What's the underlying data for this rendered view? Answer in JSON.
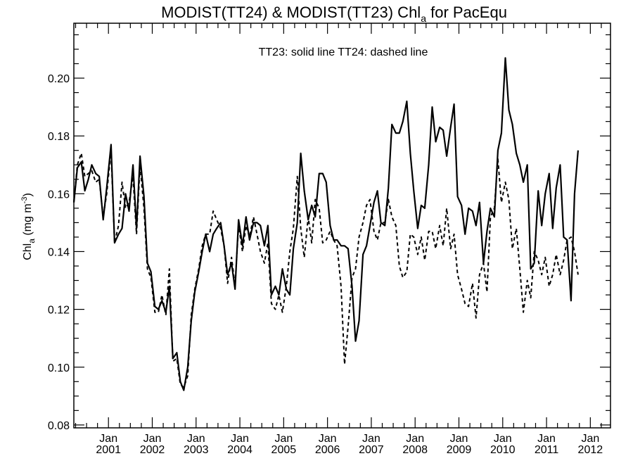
{
  "chart_data": {
    "type": "line",
    "title_parts": [
      "MODIST(TT24) & MODIST(TT23)  Chl",
      "a",
      " for PacEqu"
    ],
    "ylabel_parts": [
      "Chl",
      "a",
      " (mg m",
      "-3",
      ")"
    ],
    "annotation": "TT23: solid line   TT24: dashed line",
    "xlim": [
      2000.21,
      2012.46
    ],
    "ylim": [
      0.079,
      0.219
    ],
    "yticks": [
      0.08,
      0.1,
      0.12,
      0.14,
      0.16,
      0.18,
      0.2
    ],
    "ytick_labels": [
      "0.08",
      "0.10",
      "0.12",
      "0.14",
      "0.16",
      "0.18",
      "0.20"
    ],
    "xticks": [
      {
        "x": 2001,
        "top": "Jan",
        "bottom": "2001"
      },
      {
        "x": 2002,
        "top": "Jan",
        "bottom": "2002"
      },
      {
        "x": 2003,
        "top": "Jan",
        "bottom": "2003"
      },
      {
        "x": 2004,
        "top": "Jan",
        "bottom": "2004"
      },
      {
        "x": 2005,
        "top": "Jan",
        "bottom": "2005"
      },
      {
        "x": 2006,
        "top": "Jan",
        "bottom": "2006"
      },
      {
        "x": 2007,
        "top": "Jan",
        "bottom": "2007"
      },
      {
        "x": 2008,
        "top": "Jan",
        "bottom": "2008"
      },
      {
        "x": 2009,
        "top": "Jan",
        "bottom": "2009"
      },
      {
        "x": 2010,
        "top": "Jan",
        "bottom": "2010"
      },
      {
        "x": 2011,
        "top": "Jan",
        "bottom": "2011"
      },
      {
        "x": 2012,
        "top": "Jan",
        "bottom": "2012"
      }
    ],
    "grid": false,
    "series": [
      {
        "style": "solid",
        "points": [
          [
            2000.21,
            0.157
          ],
          [
            2000.29,
            0.169
          ],
          [
            2000.38,
            0.171
          ],
          [
            2000.46,
            0.161
          ],
          [
            2000.54,
            0.165
          ],
          [
            2000.62,
            0.17
          ],
          [
            2000.71,
            0.167
          ],
          [
            2000.79,
            0.166
          ],
          [
            2000.88,
            0.151
          ],
          [
            2000.96,
            0.162
          ],
          [
            2001.06,
            0.177
          ],
          [
            2001.14,
            0.143
          ],
          [
            2001.23,
            0.146
          ],
          [
            2001.31,
            0.148
          ],
          [
            2001.39,
            0.16
          ],
          [
            2001.47,
            0.154
          ],
          [
            2001.56,
            0.17
          ],
          [
            2001.64,
            0.148
          ],
          [
            2001.72,
            0.173
          ],
          [
            2001.81,
            0.159
          ],
          [
            2001.89,
            0.136
          ],
          [
            2001.97,
            0.133
          ],
          [
            2002.06,
            0.121
          ],
          [
            2002.14,
            0.12
          ],
          [
            2002.22,
            0.123
          ],
          [
            2002.31,
            0.119
          ],
          [
            2002.39,
            0.128
          ],
          [
            2002.47,
            0.103
          ],
          [
            2002.56,
            0.105
          ],
          [
            2002.64,
            0.095
          ],
          [
            2002.72,
            0.092
          ],
          [
            2002.81,
            0.1
          ],
          [
            2002.89,
            0.116
          ],
          [
            2002.97,
            0.126
          ],
          [
            2003.06,
            0.133
          ],
          [
            2003.14,
            0.14
          ],
          [
            2003.22,
            0.146
          ],
          [
            2003.31,
            0.14
          ],
          [
            2003.39,
            0.146
          ],
          [
            2003.47,
            0.148
          ],
          [
            2003.56,
            0.15
          ],
          [
            2003.64,
            0.142
          ],
          [
            2003.72,
            0.132
          ],
          [
            2003.81,
            0.136
          ],
          [
            2003.89,
            0.127
          ],
          [
            2003.97,
            0.151
          ],
          [
            2004.06,
            0.142
          ],
          [
            2004.14,
            0.152
          ],
          [
            2004.22,
            0.144
          ],
          [
            2004.31,
            0.15
          ],
          [
            2004.39,
            0.15
          ],
          [
            2004.47,
            0.149
          ],
          [
            2004.56,
            0.142
          ],
          [
            2004.64,
            0.149
          ],
          [
            2004.72,
            0.125
          ],
          [
            2004.81,
            0.128
          ],
          [
            2004.89,
            0.125
          ],
          [
            2004.97,
            0.134
          ],
          [
            2005.06,
            0.127
          ],
          [
            2005.14,
            0.125
          ],
          [
            2005.22,
            0.141
          ],
          [
            2005.31,
            0.15
          ],
          [
            2005.39,
            0.174
          ],
          [
            2005.47,
            0.161
          ],
          [
            2005.56,
            0.151
          ],
          [
            2005.64,
            0.156
          ],
          [
            2005.72,
            0.152
          ],
          [
            2005.81,
            0.167
          ],
          [
            2005.89,
            0.167
          ],
          [
            2005.97,
            0.164
          ],
          [
            2006.06,
            0.149
          ],
          [
            2006.14,
            0.144
          ],
          [
            2006.22,
            0.144
          ],
          [
            2006.31,
            0.142
          ],
          [
            2006.39,
            0.142
          ],
          [
            2006.47,
            0.141
          ],
          [
            2006.56,
            0.128
          ],
          [
            2006.64,
            0.109
          ],
          [
            2006.72,
            0.116
          ],
          [
            2006.81,
            0.139
          ],
          [
            2006.89,
            0.142
          ],
          [
            2006.97,
            0.149
          ],
          [
            2007.06,
            0.157
          ],
          [
            2007.14,
            0.161
          ],
          [
            2007.22,
            0.15
          ],
          [
            2007.31,
            0.149
          ],
          [
            2007.39,
            0.162
          ],
          [
            2007.47,
            0.184
          ],
          [
            2007.56,
            0.181
          ],
          [
            2007.64,
            0.181
          ],
          [
            2007.72,
            0.185
          ],
          [
            2007.81,
            0.192
          ],
          [
            2007.89,
            0.174
          ],
          [
            2007.97,
            0.161
          ],
          [
            2008.06,
            0.148
          ],
          [
            2008.14,
            0.156
          ],
          [
            2008.22,
            0.155
          ],
          [
            2008.31,
            0.17
          ],
          [
            2008.39,
            0.19
          ],
          [
            2008.47,
            0.178
          ],
          [
            2008.56,
            0.183
          ],
          [
            2008.64,
            0.182
          ],
          [
            2008.72,
            0.173
          ],
          [
            2008.81,
            0.183
          ],
          [
            2008.89,
            0.191
          ],
          [
            2008.97,
            0.159
          ],
          [
            2009.06,
            0.156
          ],
          [
            2009.14,
            0.146
          ],
          [
            2009.22,
            0.155
          ],
          [
            2009.31,
            0.154
          ],
          [
            2009.39,
            0.149
          ],
          [
            2009.47,
            0.157
          ],
          [
            2009.56,
            0.136
          ],
          [
            2009.64,
            0.147
          ],
          [
            2009.72,
            0.155
          ],
          [
            2009.81,
            0.152
          ],
          [
            2009.89,
            0.175
          ],
          [
            2009.97,
            0.181
          ],
          [
            2010.06,
            0.207
          ],
          [
            2010.14,
            0.189
          ],
          [
            2010.22,
            0.184
          ],
          [
            2010.31,
            0.174
          ],
          [
            2010.39,
            0.17
          ],
          [
            2010.47,
            0.164
          ],
          [
            2010.56,
            0.17
          ],
          [
            2010.64,
            0.134
          ],
          [
            2010.72,
            0.136
          ],
          [
            2010.81,
            0.161
          ],
          [
            2010.89,
            0.149
          ],
          [
            2010.97,
            0.16
          ],
          [
            2011.06,
            0.167
          ],
          [
            2011.14,
            0.148
          ],
          [
            2011.22,
            0.162
          ],
          [
            2011.31,
            0.17
          ],
          [
            2011.39,
            0.145
          ],
          [
            2011.47,
            0.144
          ],
          [
            2011.56,
            0.123
          ],
          [
            2011.64,
            0.16
          ],
          [
            2011.72,
            0.175
          ]
        ]
      },
      {
        "style": "dashed",
        "points": [
          [
            2000.21,
            0.157
          ],
          [
            2000.29,
            0.17
          ],
          [
            2000.38,
            0.174
          ],
          [
            2000.46,
            0.166
          ],
          [
            2000.54,
            0.167
          ],
          [
            2000.62,
            0.168
          ],
          [
            2000.71,
            0.164
          ],
          [
            2000.79,
            0.165
          ],
          [
            2000.88,
            0.152
          ],
          [
            2000.96,
            0.16
          ],
          [
            2001.06,
            0.175
          ],
          [
            2001.14,
            0.143
          ],
          [
            2001.23,
            0.149
          ],
          [
            2001.31,
            0.164
          ],
          [
            2001.39,
            0.155
          ],
          [
            2001.47,
            0.157
          ],
          [
            2001.56,
            0.166
          ],
          [
            2001.64,
            0.146
          ],
          [
            2001.72,
            0.17
          ],
          [
            2001.81,
            0.155
          ],
          [
            2001.89,
            0.134
          ],
          [
            2001.97,
            0.131
          ],
          [
            2002.06,
            0.119
          ],
          [
            2002.14,
            0.119
          ],
          [
            2002.22,
            0.125
          ],
          [
            2002.31,
            0.118
          ],
          [
            2002.39,
            0.134
          ],
          [
            2002.47,
            0.102
          ],
          [
            2002.56,
            0.103
          ],
          [
            2002.64,
            0.094
          ],
          [
            2002.72,
            0.093
          ],
          [
            2002.81,
            0.097
          ],
          [
            2002.89,
            0.118
          ],
          [
            2002.97,
            0.127
          ],
          [
            2003.06,
            0.134
          ],
          [
            2003.14,
            0.142
          ],
          [
            2003.22,
            0.146
          ],
          [
            2003.31,
            0.146
          ],
          [
            2003.39,
            0.154
          ],
          [
            2003.47,
            0.151
          ],
          [
            2003.56,
            0.148
          ],
          [
            2003.64,
            0.142
          ],
          [
            2003.72,
            0.129
          ],
          [
            2003.81,
            0.138
          ],
          [
            2003.89,
            0.128
          ],
          [
            2003.97,
            0.149
          ],
          [
            2004.06,
            0.14
          ],
          [
            2004.14,
            0.149
          ],
          [
            2004.22,
            0.145
          ],
          [
            2004.31,
            0.152
          ],
          [
            2004.39,
            0.146
          ],
          [
            2004.47,
            0.14
          ],
          [
            2004.56,
            0.136
          ],
          [
            2004.64,
            0.143
          ],
          [
            2004.72,
            0.122
          ],
          [
            2004.81,
            0.12
          ],
          [
            2004.89,
            0.125
          ],
          [
            2004.97,
            0.119
          ],
          [
            2005.06,
            0.128
          ],
          [
            2005.14,
            0.14
          ],
          [
            2005.22,
            0.148
          ],
          [
            2005.31,
            0.166
          ],
          [
            2005.39,
            0.148
          ],
          [
            2005.47,
            0.138
          ],
          [
            2005.56,
            0.152
          ],
          [
            2005.64,
            0.143
          ],
          [
            2005.72,
            0.158
          ],
          [
            2005.81,
            0.155
          ],
          [
            2005.89,
            0.143
          ],
          [
            2005.97,
            0.144
          ],
          [
            2006.06,
            0.147
          ],
          [
            2006.14,
            0.144
          ],
          [
            2006.22,
            0.142
          ],
          [
            2006.31,
            0.128
          ],
          [
            2006.39,
            0.101
          ],
          [
            2006.47,
            0.114
          ],
          [
            2006.56,
            0.131
          ],
          [
            2006.64,
            0.134
          ],
          [
            2006.72,
            0.145
          ],
          [
            2006.81,
            0.15
          ],
          [
            2006.89,
            0.156
          ],
          [
            2006.97,
            0.158
          ],
          [
            2007.06,
            0.147
          ],
          [
            2007.14,
            0.144
          ],
          [
            2007.22,
            0.15
          ],
          [
            2007.31,
            0.15
          ],
          [
            2007.39,
            0.158
          ],
          [
            2007.47,
            0.152
          ],
          [
            2007.56,
            0.149
          ],
          [
            2007.64,
            0.135
          ],
          [
            2007.72,
            0.131
          ],
          [
            2007.81,
            0.133
          ],
          [
            2007.89,
            0.146
          ],
          [
            2007.97,
            0.145
          ],
          [
            2008.06,
            0.139
          ],
          [
            2008.14,
            0.145
          ],
          [
            2008.22,
            0.137
          ],
          [
            2008.31,
            0.147
          ],
          [
            2008.39,
            0.147
          ],
          [
            2008.47,
            0.141
          ],
          [
            2008.56,
            0.149
          ],
          [
            2008.64,
            0.142
          ],
          [
            2008.72,
            0.155
          ],
          [
            2008.81,
            0.141
          ],
          [
            2008.89,
            0.146
          ],
          [
            2008.97,
            0.132
          ],
          [
            2009.06,
            0.127
          ],
          [
            2009.14,
            0.122
          ],
          [
            2009.22,
            0.121
          ],
          [
            2009.31,
            0.129
          ],
          [
            2009.39,
            0.117
          ],
          [
            2009.47,
            0.132
          ],
          [
            2009.56,
            0.136
          ],
          [
            2009.64,
            0.126
          ],
          [
            2009.72,
            0.152
          ],
          [
            2009.81,
            0.155
          ],
          [
            2009.89,
            0.172
          ],
          [
            2009.97,
            0.157
          ],
          [
            2010.06,
            0.164
          ],
          [
            2010.14,
            0.158
          ],
          [
            2010.22,
            0.141
          ],
          [
            2010.31,
            0.148
          ],
          [
            2010.39,
            0.134
          ],
          [
            2010.47,
            0.119
          ],
          [
            2010.56,
            0.13
          ],
          [
            2010.64,
            0.124
          ],
          [
            2010.72,
            0.14
          ],
          [
            2010.81,
            0.137
          ],
          [
            2010.89,
            0.132
          ],
          [
            2010.97,
            0.138
          ],
          [
            2011.06,
            0.128
          ],
          [
            2011.14,
            0.132
          ],
          [
            2011.22,
            0.139
          ],
          [
            2011.31,
            0.132
          ],
          [
            2011.39,
            0.137
          ],
          [
            2011.47,
            0.144
          ],
          [
            2011.56,
            0.145
          ],
          [
            2011.64,
            0.14
          ],
          [
            2011.72,
            0.132
          ]
        ]
      }
    ]
  }
}
